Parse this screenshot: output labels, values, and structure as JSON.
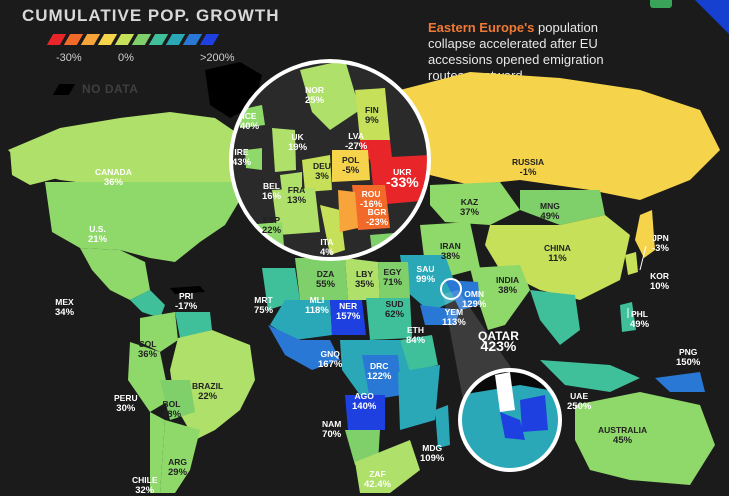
{
  "title": "CUMULATIVE POP. GROWTH",
  "legend": {
    "swatches": [
      "#e8262a",
      "#f26a2a",
      "#f7a43a",
      "#f5d34a",
      "#c6e05a",
      "#7fd06a",
      "#3fbf9a",
      "#2aa8b8",
      "#2a78d6",
      "#1e40e0"
    ],
    "min_label": "-30%",
    "mid_label": "0%",
    "max_label": ">200%",
    "no_data_label": "NO DATA",
    "no_data_color": "#000000"
  },
  "annotation": {
    "highlight": "Eastern Europe's",
    "text": " population collapse accelerated after EU accessions opened emigration routes westward."
  },
  "labels": {
    "canada": {
      "name": "CANADA",
      "value": "36%"
    },
    "us": {
      "name": "U.S.",
      "value": "21%"
    },
    "mex": {
      "name": "MEX",
      "value": "34%"
    },
    "pri": {
      "name": "PRI",
      "value": "-17%"
    },
    "col": {
      "name": "COL",
      "value": "36%"
    },
    "peru": {
      "name": "PERU",
      "value": "30%"
    },
    "bol": {
      "name": "BOL",
      "value": "48%"
    },
    "brazil": {
      "name": "BRAZIL",
      "value": "22%"
    },
    "arg": {
      "name": "ARG",
      "value": "29%"
    },
    "chile": {
      "name": "CHILE",
      "value": "32%"
    },
    "ice": {
      "name": "ICE",
      "value": "40%"
    },
    "ire": {
      "name": "IRE",
      "value": "43%"
    },
    "uk": {
      "name": "UK",
      "value": "19%"
    },
    "nor": {
      "name": "NOR",
      "value": "25%"
    },
    "fin": {
      "name": "FIN",
      "value": "9%"
    },
    "lva": {
      "name": "LVA",
      "value": "-27%"
    },
    "deu": {
      "name": "DEU",
      "value": "3%"
    },
    "pol": {
      "name": "POL",
      "value": "-5%"
    },
    "ukr": {
      "name": "UKR",
      "value": "-33%"
    },
    "bel": {
      "name": "BEL",
      "value": "16%"
    },
    "fra": {
      "name": "FRA",
      "value": "13%"
    },
    "rou": {
      "name": "ROU",
      "value": "-16%"
    },
    "bgr": {
      "name": "BGR",
      "value": "-23%"
    },
    "esp": {
      "name": "ESP",
      "value": "22%"
    },
    "ita": {
      "name": "ITA",
      "value": "4%"
    },
    "russia": {
      "name": "RUSSIA",
      "value": "-1%"
    },
    "kaz": {
      "name": "KAZ",
      "value": "37%"
    },
    "mng": {
      "name": "MNG",
      "value": "49%"
    },
    "china": {
      "name": "CHINA",
      "value": "11%"
    },
    "jpn": {
      "name": "JPN",
      "value": "-3%"
    },
    "kor": {
      "name": "KOR",
      "value": "10%"
    },
    "iran": {
      "name": "IRAN",
      "value": "38%"
    },
    "india": {
      "name": "INDIA",
      "value": "38%"
    },
    "sau": {
      "name": "SAU",
      "value": "99%"
    },
    "omn": {
      "name": "OMN",
      "value": "129%"
    },
    "yem": {
      "name": "YEM",
      "value": "113%"
    },
    "egy": {
      "name": "EGY",
      "value": "71%"
    },
    "lby": {
      "name": "LBY",
      "value": "35%"
    },
    "dza": {
      "name": "DZA",
      "value": "55%"
    },
    "mrt": {
      "name": "MRT",
      "value": "75%"
    },
    "mli": {
      "name": "MLI",
      "value": "118%"
    },
    "ner": {
      "name": "NER",
      "value": "157%"
    },
    "sud": {
      "name": "SUD",
      "value": "62%"
    },
    "eth": {
      "name": "ETH",
      "value": "84%"
    },
    "gnq": {
      "name": "GNQ",
      "value": "167%"
    },
    "drc": {
      "name": "DRC",
      "value": "122%"
    },
    "ago": {
      "name": "AGO",
      "value": "140%"
    },
    "nam": {
      "name": "NAM",
      "value": "70%"
    },
    "zaf": {
      "name": "ZAF",
      "value": "42.4%"
    },
    "mdg": {
      "name": "MDG",
      "value": "109%"
    },
    "qatar": {
      "name": "QATAR",
      "value": "423%"
    },
    "uae": {
      "name": "UAE",
      "value": "250%"
    },
    "phl": {
      "name": "PHL",
      "value": "49%"
    },
    "png": {
      "name": "PNG",
      "value": "150%"
    },
    "australia": {
      "name": "AUSTRALIA",
      "value": "45%"
    }
  }
}
